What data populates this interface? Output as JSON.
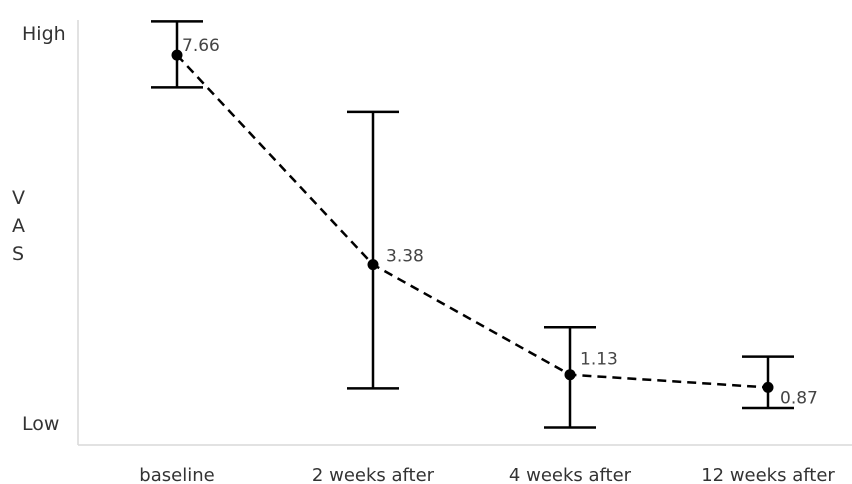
{
  "chart_data": {
    "type": "line",
    "categories": [
      "baseline",
      "2 weeks after",
      "4 weeks after",
      "12 weeks after"
    ],
    "series": [
      {
        "values": [
          7.66,
          3.38,
          1.13,
          0.87
        ],
        "error_low": [
          7.0,
          0.85,
          0.05,
          0.45
        ],
        "error_high": [
          8.35,
          6.5,
          2.1,
          1.5
        ]
      }
    ],
    "data_labels": [
      "7.66",
      "3.38",
      "1.13",
      "0.87"
    ],
    "ylabel": "VAS",
    "ylabel_chars": [
      "V",
      "A",
      "S"
    ],
    "ytick_labels": {
      "high": "High",
      "low": "Low"
    },
    "ylim": [
      0,
      8.5
    ],
    "grid": false,
    "line_style": "dashed",
    "colors": {
      "line": "#000000",
      "axis": "#d9d9d9",
      "text": "#333333"
    }
  }
}
